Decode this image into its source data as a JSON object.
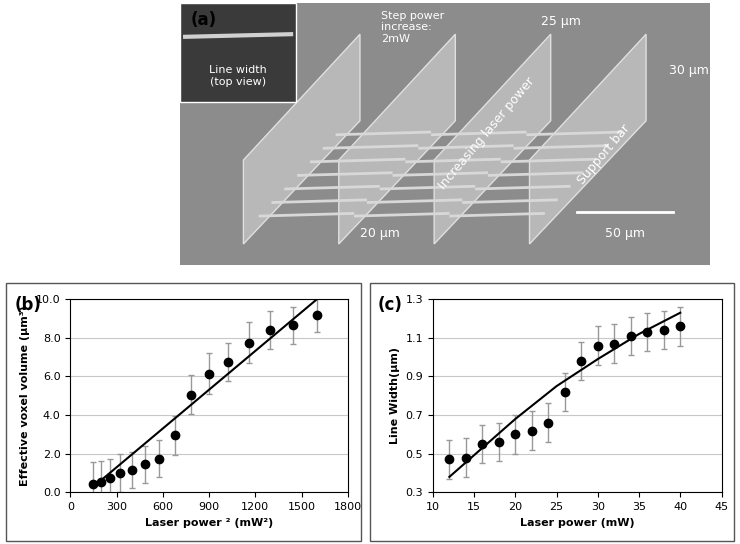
{
  "panel_a": {
    "label": "(a)",
    "inset_text": "Line width\n(top view)",
    "step_text": "Step power\nincrease:\n2mW",
    "width_text": "25 µm",
    "height_text": "30 µm",
    "gap_text": "20 µm",
    "arrow_text": "Increasing laser power",
    "bar_text": "Support bar",
    "scale_text": "50 µm"
  },
  "chart_data": [
    {
      "type": "scatter",
      "label": "(b)",
      "x_label": "Laser power ² (mW²)",
      "y_label": "Effective voxel volume (µm³)",
      "xlim": [
        0,
        1800
      ],
      "xticks": [
        0,
        300,
        600,
        900,
        1200,
        1500,
        1800
      ],
      "ylim": [
        0,
        10
      ],
      "yticks": [
        {
          "value": 0,
          "label": "0.0"
        },
        {
          "value": 2,
          "label": "2.0"
        },
        {
          "value": 4,
          "label": "4.0"
        },
        {
          "value": 6,
          "label": "6.0"
        },
        {
          "value": 8,
          "label": "8.0"
        },
        {
          "value": 10,
          "label": "10.0"
        }
      ],
      "grid": true,
      "series": [
        {
          "type": "scatter",
          "color": "#000000",
          "marker": "o",
          "x": [
            144,
            196,
            256,
            324,
            400,
            484,
            576,
            676,
            784,
            900,
            1024,
            1156,
            1296,
            1444,
            1600
          ],
          "values": [
            0.45,
            0.55,
            0.75,
            1.0,
            1.15,
            1.45,
            1.75,
            2.95,
            5.05,
            6.15,
            6.75,
            7.75,
            8.4,
            8.65,
            9.2
          ],
          "errors": [
            1.1,
            1.05,
            1.0,
            1.0,
            0.95,
            0.95,
            0.95,
            1.0,
            1.0,
            1.05,
            1.0,
            1.05,
            1.0,
            0.95,
            0.9
          ]
        },
        {
          "type": "line",
          "color": "#000000",
          "line_style": "solid",
          "x": [
            144,
            1600
          ],
          "values": [
            0.25,
            10.0
          ]
        }
      ]
    },
    {
      "type": "scatter",
      "label": "(c)",
      "x_label": "Laser power (mW)",
      "y_label": "Line Width(µm)",
      "xlim": [
        10,
        45
      ],
      "xticks": [
        10,
        15,
        20,
        25,
        30,
        35,
        40,
        45
      ],
      "ylim": [
        0.3,
        1.3
      ],
      "yticks": [
        0.3,
        0.5,
        0.7,
        0.9,
        1.1,
        1.3
      ],
      "grid": true,
      "series": [
        {
          "type": "scatter",
          "color": "#000000",
          "marker": "o",
          "x": [
            12,
            14,
            16,
            18,
            20,
            22,
            24,
            26,
            28,
            30,
            32,
            34,
            36,
            38,
            40
          ],
          "values": [
            0.47,
            0.48,
            0.55,
            0.56,
            0.6,
            0.62,
            0.66,
            0.82,
            0.98,
            1.06,
            1.07,
            1.11,
            1.13,
            1.14,
            1.16
          ],
          "errors": [
            0.1,
            0.1,
            0.1,
            0.1,
            0.1,
            0.1,
            0.1,
            0.1,
            0.1,
            0.1,
            0.1,
            0.1,
            0.1,
            0.1,
            0.1
          ]
        },
        {
          "type": "line",
          "color": "#000000",
          "line_style": "solid",
          "x": [
            12,
            16,
            20,
            25,
            30,
            35,
            40
          ],
          "values": [
            0.38,
            0.53,
            0.68,
            0.85,
            0.99,
            1.12,
            1.23
          ]
        }
      ]
    }
  ]
}
